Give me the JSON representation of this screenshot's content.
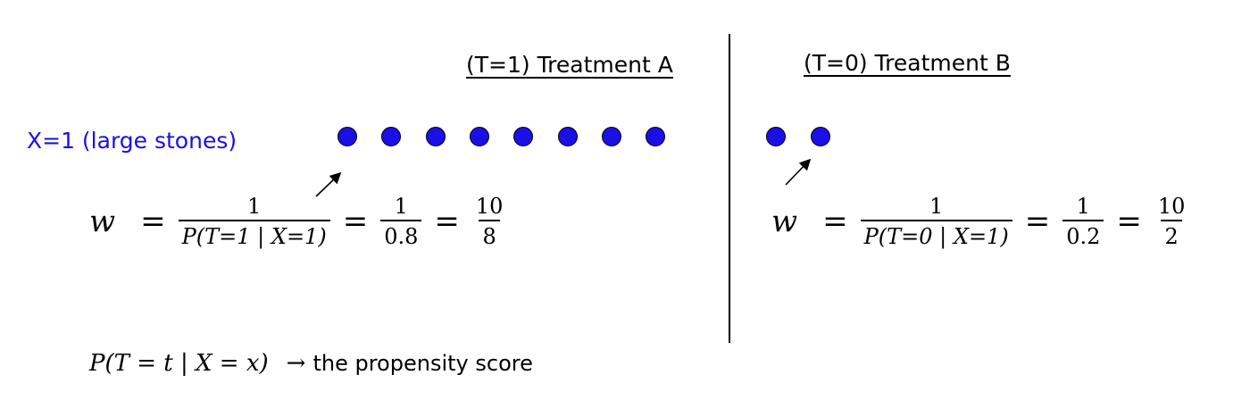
{
  "left": {
    "heading": "(T=1) Treatment A",
    "dots": 8,
    "w": "w",
    "eq": "=",
    "frac1_num": "1",
    "frac1_den": "P(T=1 | X=1)",
    "frac2_num": "1",
    "frac2_den": "0.8",
    "frac3_num": "10",
    "frac3_den": "8"
  },
  "right": {
    "heading": "(T=0) Treatment B",
    "dots": 2,
    "w": "w",
    "eq": "=",
    "frac1_num": "1",
    "frac1_den": "P(T=0 | X=1)",
    "frac2_num": "1",
    "frac2_den": "0.2",
    "frac3_num": "10",
    "frac3_den": "2"
  },
  "row_label": "X=1 (large stones)",
  "dot_color": "#1a10e6",
  "footer": {
    "formula": "P(T = t | X = x)",
    "arrow": "→",
    "text": "the propensity score"
  }
}
